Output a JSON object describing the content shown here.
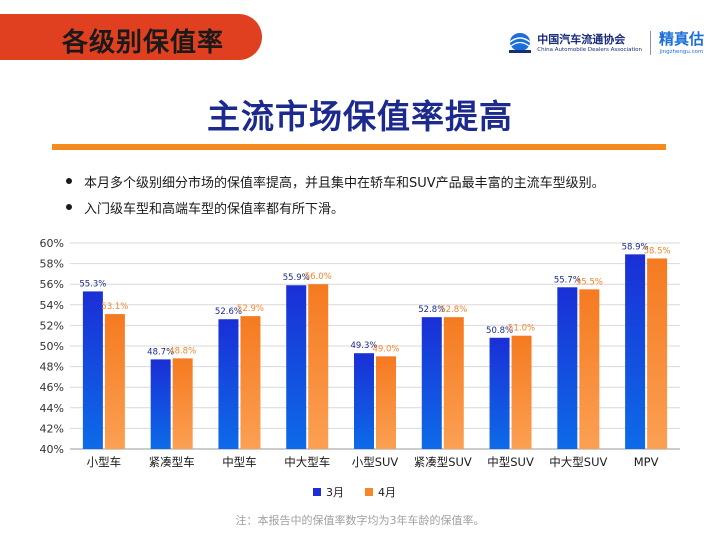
{
  "header": {
    "section_title": "各级别保值率",
    "association_name": "中国汽车流通协会",
    "association_en": "China Automobile Dealers Association",
    "brand_name": "精真估",
    "brand_url": "jingzhengu.com"
  },
  "headline": "主流市场保值率提高",
  "bullets": [
    "本月多个级别细分市场的保值率提高，并且集中在轿车和SUV产品最丰富的主流车型级别。",
    "入门级车型和高端车型的保值率都有所下滑。"
  ],
  "footnote": "注：本报告中的保值率数字均为3年车龄的保值率。",
  "colors": {
    "title_tab": "#e04020",
    "headline": "#1b2a8c",
    "rule": "#f58a1f",
    "march": "#1a2fd6",
    "april": "#f5862a"
  },
  "chart_data": {
    "type": "bar",
    "categories": [
      "小型车",
      "紧凑型车",
      "中型车",
      "中大型车",
      "小型SUV",
      "紧凑型SUV",
      "中型SUV",
      "中大型SUV",
      "MPV"
    ],
    "series": [
      {
        "name": "3月",
        "values": [
          55.3,
          48.7,
          52.6,
          55.9,
          49.3,
          52.8,
          50.8,
          55.7,
          58.9
        ],
        "labels": [
          "55.3%",
          "48.7%",
          "52.6%",
          "55.9%",
          "49.3%",
          "52.8%",
          "50.8%",
          "55.7%",
          "58.9%"
        ],
        "color": "#1a2fd6"
      },
      {
        "name": "4月",
        "values": [
          53.1,
          48.8,
          52.9,
          56.0,
          49.0,
          52.8,
          51.0,
          55.5,
          58.5
        ],
        "labels": [
          "53.1%",
          "48.8%",
          "52.9%",
          "56.0%",
          "49.0%",
          "52.8%",
          "51.0%",
          "55.5%",
          "58.5%"
        ],
        "color": "#f5862a"
      }
    ],
    "yticks": [
      "40%",
      "42%",
      "44%",
      "46%",
      "48%",
      "50%",
      "52%",
      "54%",
      "56%",
      "58%",
      "60%"
    ],
    "ylim": [
      40,
      60
    ],
    "grid": true,
    "legend": "bottom-center"
  }
}
